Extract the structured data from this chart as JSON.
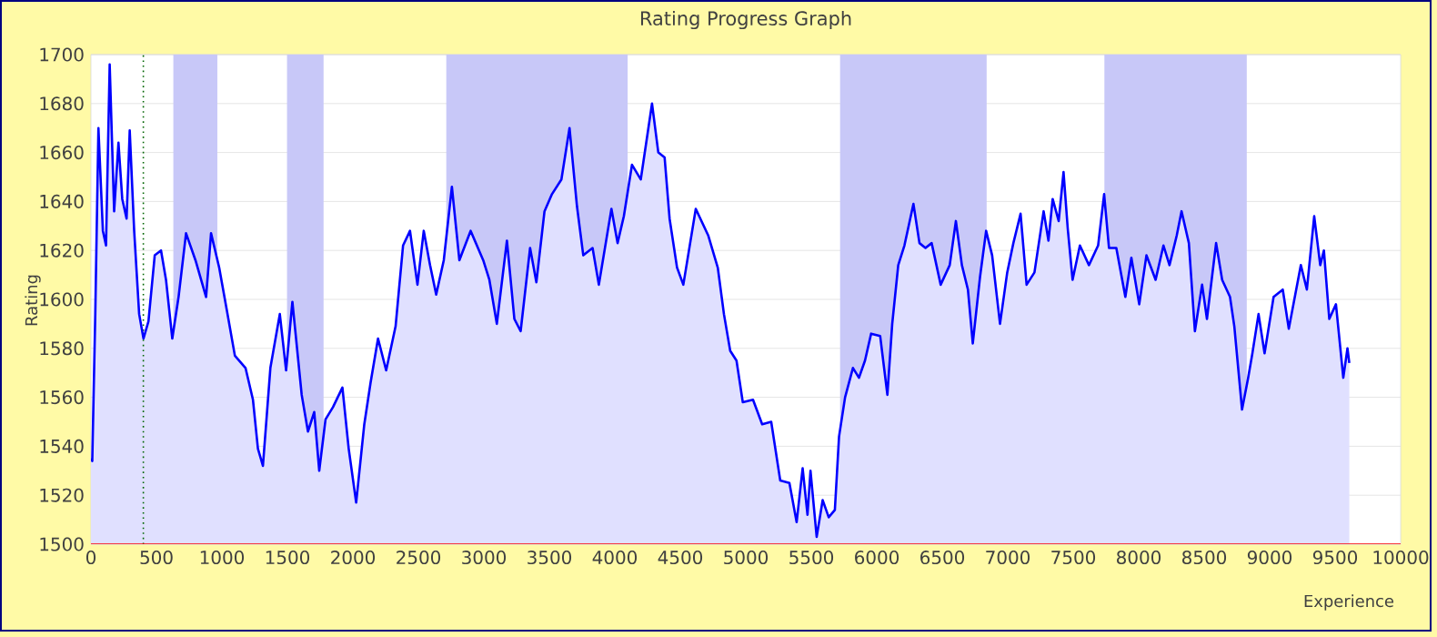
{
  "chart_data": {
    "type": "area",
    "title": "Rating Progress Graph",
    "xlabel": "Experience",
    "ylabel": "Rating",
    "x": [
      0,
      10,
      33,
      57,
      91,
      115,
      143,
      177,
      210,
      239,
      272,
      296,
      330,
      368,
      401,
      439,
      487,
      535,
      573,
      621,
      669,
      726,
      798,
      879,
      917,
      979,
      1036,
      1099,
      1180,
      1237,
      1275,
      1313,
      1370,
      1442,
      1490,
      1538,
      1609,
      1657,
      1705,
      1743,
      1791,
      1848,
      1920,
      1968,
      2025,
      2087,
      2135,
      2192,
      2254,
      2326,
      2383,
      2436,
      2493,
      2541,
      2589,
      2636,
      2694,
      2756,
      2813,
      2899,
      2995,
      3042,
      3099,
      3176,
      3233,
      3281,
      3353,
      3401,
      3463,
      3520,
      3592,
      3654,
      3711,
      3759,
      3830,
      3878,
      3974,
      4021,
      4069,
      4131,
      4198,
      4284,
      4332,
      4380,
      4418,
      4475,
      4523,
      4618,
      4714,
      4786,
      4833,
      4881,
      4929,
      4977,
      5055,
      5125,
      5194,
      5263,
      5333,
      5388,
      5434,
      5471,
      5494,
      5541,
      5587,
      5633,
      5680,
      5712,
      5758,
      5818,
      5864,
      5910,
      5957,
      6026,
      6081,
      6118,
      6164,
      6211,
      6280,
      6326,
      6372,
      6419,
      6488,
      6557,
      6604,
      6650,
      6696,
      6733,
      6788,
      6835,
      6881,
      6941,
      6996,
      7043,
      7098,
      7144,
      7204,
      7274,
      7311,
      7343,
      7389,
      7426,
      7458,
      7495,
      7551,
      7620,
      7690,
      7736,
      7773,
      7829,
      7898,
      7944,
      8004,
      8059,
      8129,
      8189,
      8235,
      8290,
      8327,
      8383,
      8429,
      8484,
      8521,
      8591,
      8637,
      8697,
      8730,
      8789,
      8836,
      8868,
      8915,
      8961,
      9030,
      9100,
      9146,
      9192,
      9238,
      9284,
      9340,
      9386,
      9414,
      9455,
      9506,
      9562,
      9594,
      9608
    ],
    "values": [
      1535,
      1534,
      1594,
      1670,
      1628,
      1622,
      1696,
      1636,
      1664,
      1641,
      1633,
      1669,
      1628,
      1594,
      1584,
      1591,
      1618,
      1620,
      1608,
      1584,
      1601,
      1627,
      1616,
      1601,
      1627,
      1613,
      1596,
      1577,
      1572,
      1559,
      1539,
      1532,
      1572,
      1594,
      1571,
      1599,
      1561,
      1546,
      1554,
      1530,
      1551,
      1556,
      1564,
      1539,
      1517,
      1549,
      1566,
      1584,
      1571,
      1589,
      1622,
      1628,
      1606,
      1628,
      1614,
      1602,
      1616,
      1646,
      1616,
      1628,
      1616,
      1608,
      1590,
      1624,
      1592,
      1587,
      1621,
      1607,
      1636,
      1643,
      1649,
      1670,
      1638,
      1618,
      1621,
      1606,
      1637,
      1623,
      1634,
      1655,
      1649,
      1680,
      1660,
      1658,
      1633,
      1613,
      1606,
      1637,
      1626,
      1613,
      1594,
      1579,
      1575,
      1558,
      1559,
      1549,
      1550,
      1526,
      1525,
      1509,
      1531,
      1512,
      1530,
      1503,
      1518,
      1511,
      1514,
      1544,
      1560,
      1572,
      1568,
      1575,
      1586,
      1585,
      1561,
      1590,
      1614,
      1622,
      1639,
      1623,
      1621,
      1623,
      1606,
      1614,
      1632,
      1614,
      1604,
      1582,
      1609,
      1628,
      1618,
      1590,
      1611,
      1623,
      1635,
      1606,
      1611,
      1636,
      1624,
      1641,
      1632,
      1652,
      1629,
      1608,
      1622,
      1614,
      1622,
      1643,
      1621,
      1621,
      1601,
      1617,
      1598,
      1618,
      1608,
      1622,
      1614,
      1626,
      1636,
      1623,
      1587,
      1606,
      1592,
      1623,
      1608,
      1601,
      1589,
      1555,
      1568,
      1578,
      1594,
      1578,
      1601,
      1604,
      1588,
      1601,
      1614,
      1604,
      1634,
      1614,
      1620,
      1592,
      1598,
      1568,
      1580,
      1574
    ],
    "color": "#0000ff",
    "xlim": [
      0,
      10000
    ],
    "xticks": [
      0,
      500,
      1000,
      1500,
      2000,
      2500,
      3000,
      3500,
      4000,
      4500,
      5000,
      5500,
      6000,
      6500,
      7000,
      7500,
      8000,
      8500,
      9000,
      9500,
      10000
    ],
    "ylim": [
      1500,
      1700
    ],
    "yticks": [
      1500,
      1520,
      1540,
      1560,
      1580,
      1600,
      1620,
      1640,
      1660,
      1680,
      1700
    ],
    "grid": "y",
    "bands": [
      {
        "axis": "x",
        "from": 629,
        "to": 965,
        "color": "#c8c8f8"
      },
      {
        "axis": "x",
        "from": 1497,
        "to": 1776,
        "color": "#c8c8f8"
      },
      {
        "axis": "x",
        "from": 2713,
        "to": 4098,
        "color": "#c8c8f8"
      },
      {
        "axis": "x",
        "from": 5720,
        "to": 6839,
        "color": "#c8c8f8"
      },
      {
        "axis": "x",
        "from": 7738,
        "to": 8825,
        "color": "#c8c8f8"
      }
    ],
    "ref_lines": [
      {
        "axis": "x",
        "value": 400,
        "color": "#006400",
        "line_style": "dotted"
      }
    ]
  }
}
